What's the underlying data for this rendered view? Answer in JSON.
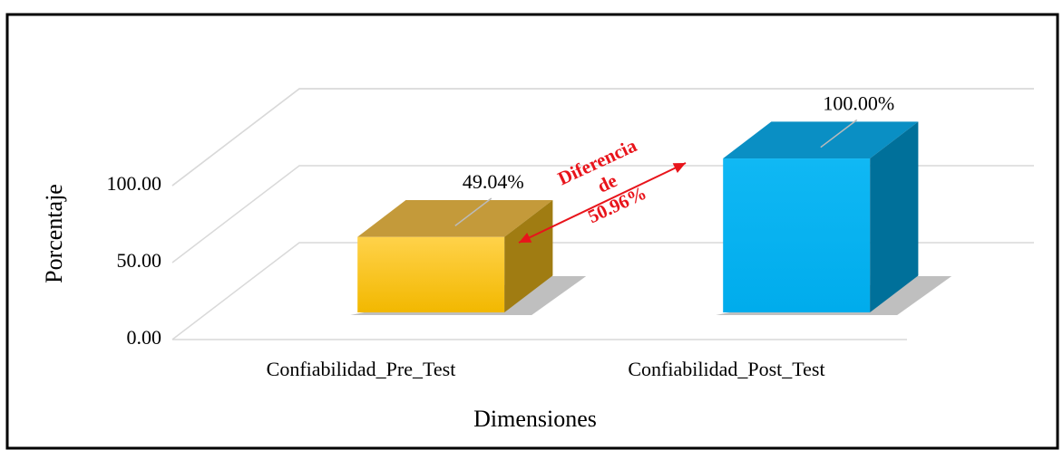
{
  "chart_data": {
    "type": "bar3d",
    "x_label": "Dimensiones",
    "y_label": "Porcentaje",
    "categories": [
      "Confiabilidad_Pre_Test",
      "Confiabilidad_Post_Test"
    ],
    "values": [
      49.04,
      100
    ],
    "value_labels": [
      "49.04%",
      "100.00%"
    ],
    "colors": [
      "#FFC000",
      "#00B0F0"
    ],
    "ylim": [
      0,
      100
    ],
    "yticks": [
      {
        "value": 0,
        "label": "0.00"
      },
      {
        "value": 50,
        "label": "50.00"
      },
      {
        "value": 100,
        "label": "100.00"
      }
    ],
    "grid": true,
    "annotation": [
      "Diferencia",
      "de",
      "50.96%"
    ],
    "annotation_color": "#E8141B"
  }
}
